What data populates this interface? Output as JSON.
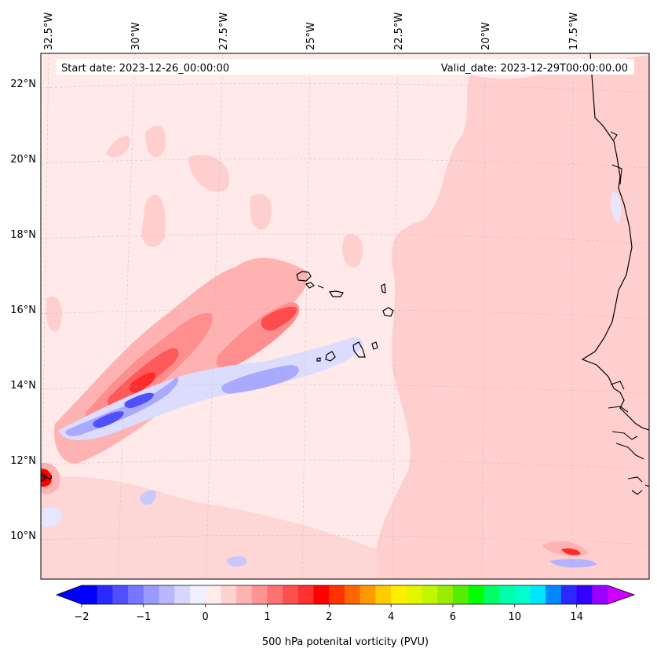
{
  "map": {
    "start_date": "Start date: 2023-12-26_00:00:00",
    "valid_date": "Valid_date: 2023-12-29T00:00:00.00",
    "lon_labels": [
      "32.5°W",
      "30°W",
      "27.5°W",
      "25°W",
      "22.5°W",
      "20°W",
      "17.5°W"
    ],
    "lat_labels": [
      "22°N",
      "20°N",
      "18°N",
      "16°N",
      "14°N",
      "12°N",
      "10°N"
    ],
    "point_label": "2"
  },
  "colorbar": {
    "label": "500 hPa potenital vorticity (PVU)",
    "ticks": [
      "−2",
      "−1",
      "0",
      "1",
      "2",
      "4",
      "6",
      "10",
      "14"
    ],
    "colors": [
      "#0000ff",
      "#2a2aff",
      "#5050ff",
      "#7676ff",
      "#9a9aff",
      "#b8b8ff",
      "#d6d6ff",
      "#efefff",
      "#ffecec",
      "#ffd2d2",
      "#ffb2b2",
      "#ff9292",
      "#ff7070",
      "#ff5050",
      "#ff3030",
      "#ff0000",
      "#ff3300",
      "#ff6600",
      "#ff9900",
      "#ffcc00",
      "#ffee00",
      "#e4f500",
      "#c2f500",
      "#99ee00",
      "#55ee00",
      "#00ff00",
      "#00ff66",
      "#00ffaa",
      "#00ffcc",
      "#00e5ff",
      "#0088ff",
      "#2a2aff",
      "#3300ff",
      "#9900ff"
    ],
    "extend_low_color": "#0000ff",
    "extend_high_color": "#cc00ff"
  },
  "colors": {
    "background_low_pv": "#ffe9e9",
    "moderate_pv": "#ffcfcf",
    "negative_pv": "#c8c8ff",
    "coastline": "#000000"
  }
}
